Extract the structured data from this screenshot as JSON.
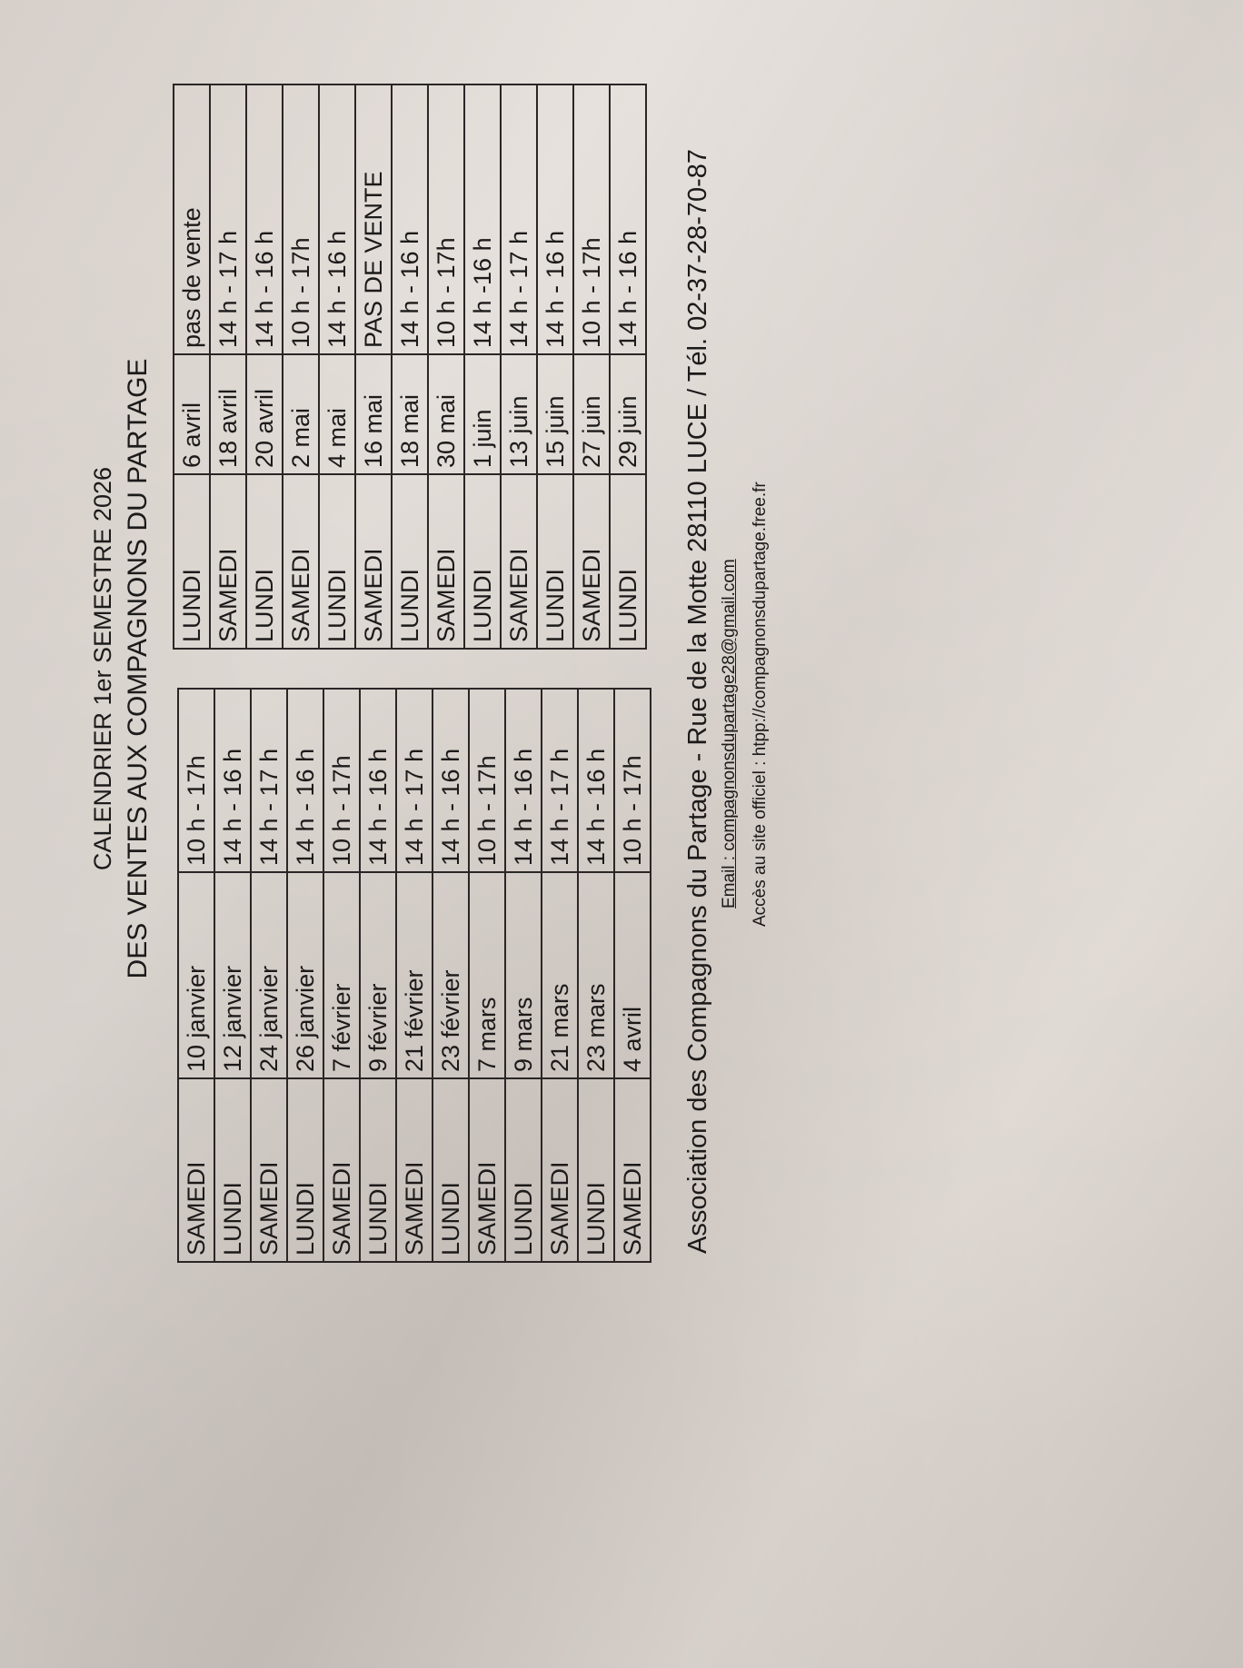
{
  "title": {
    "line1": "CALENDRIER 1er SEMESTRE 2026",
    "line2": "DES VENTES AUX COMPAGNONS DU PARTAGE"
  },
  "left_table": [
    [
      "SAMEDI",
      "10 janvier",
      "10 h - 17h"
    ],
    [
      "LUNDI",
      "12 janvier",
      "14 h - 16 h"
    ],
    [
      "SAMEDI",
      "24 janvier",
      "14 h - 17 h"
    ],
    [
      "LUNDI",
      "26 janvier",
      "14 h - 16 h"
    ],
    [
      "SAMEDI",
      "7 février",
      "10 h - 17h"
    ],
    [
      "LUNDI",
      "9 février",
      "14 h - 16 h"
    ],
    [
      "SAMEDI",
      "21 février",
      "14 h - 17 h"
    ],
    [
      "LUNDI",
      "23 février",
      "14 h - 16 h"
    ],
    [
      "SAMEDI",
      "7 mars",
      "10 h - 17h"
    ],
    [
      "LUNDI",
      "9 mars",
      "14 h - 16 h"
    ],
    [
      "SAMEDI",
      "21 mars",
      "14 h - 17 h"
    ],
    [
      "LUNDI",
      "23 mars",
      "14 h - 16 h"
    ],
    [
      "SAMEDI",
      "4 avril",
      "10 h - 17h"
    ]
  ],
  "right_table": [
    [
      "LUNDI",
      "6 avril",
      "pas de vente"
    ],
    [
      "SAMEDI",
      "18 avril",
      "14 h - 17 h"
    ],
    [
      "LUNDI",
      "20 avril",
      "14 h - 16 h"
    ],
    [
      "SAMEDI",
      "2 mai",
      "10 h - 17h"
    ],
    [
      "LUNDI",
      "4 mai",
      "14 h - 16 h"
    ],
    [
      "SAMEDI",
      "16 mai",
      "PAS DE VENTE"
    ],
    [
      "LUNDI",
      "18 mai",
      "14 h - 16 h"
    ],
    [
      "SAMEDI",
      "30 mai",
      "10 h - 17h"
    ],
    [
      "LUNDI",
      "1 juin",
      "14 h -16 h"
    ],
    [
      "SAMEDI",
      "13 juin",
      "14 h - 17 h"
    ],
    [
      "LUNDI",
      "15 juin",
      "14 h - 16 h"
    ],
    [
      "SAMEDI",
      "27 juin",
      "10 h - 17h"
    ],
    [
      "LUNDI",
      "29 juin",
      "14 h - 16 h"
    ]
  ],
  "footer": {
    "address": "Association des Compagnons du Partage - Rue de la Motte 28110 LUCE  /  Tél. 02-37-28-70-87",
    "email": "Email : compagnonsdupartage28@gmail.com",
    "site": "Accès au site officiel : htpp://compagnonsdupartage.free.fr"
  }
}
